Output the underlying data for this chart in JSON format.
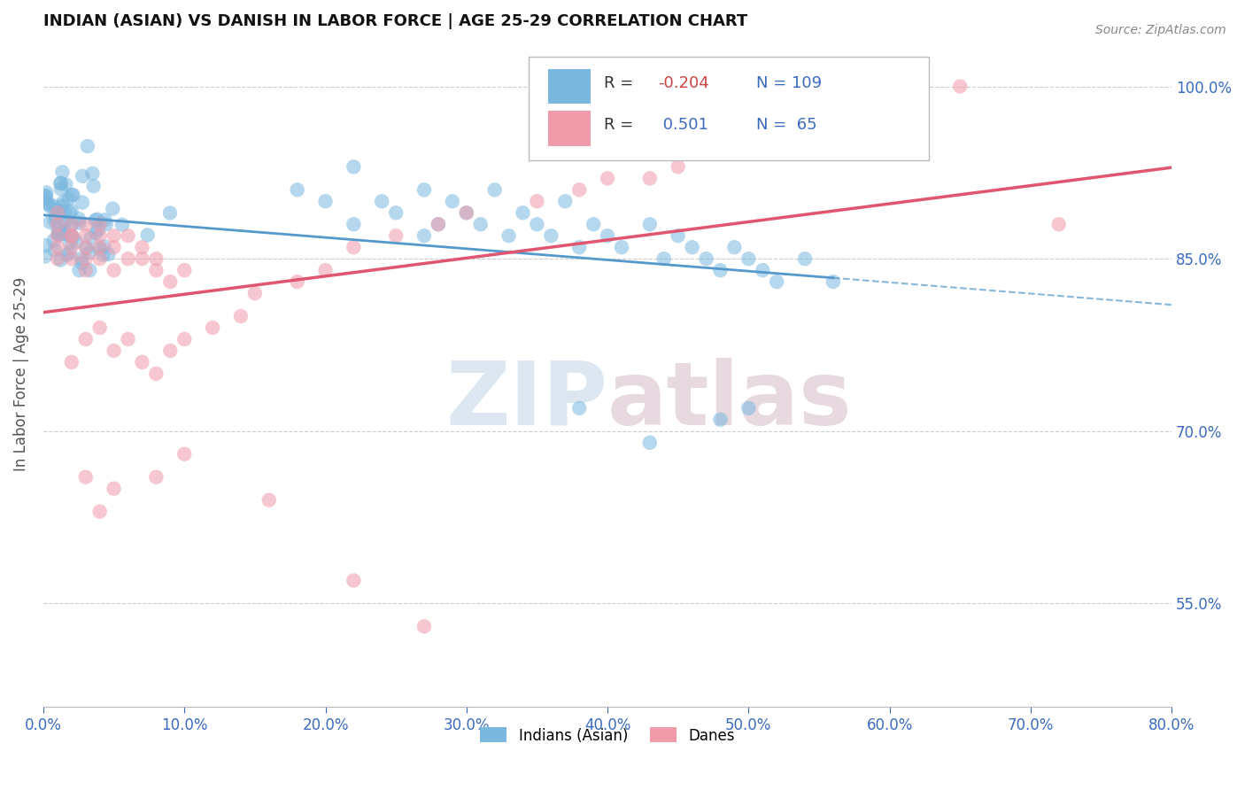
{
  "title": "INDIAN (ASIAN) VS DANISH IN LABOR FORCE | AGE 25-29 CORRELATION CHART",
  "source_text": "Source: ZipAtlas.com",
  "ylabel": "In Labor Force | Age 25-29",
  "xlim": [
    0.0,
    0.8
  ],
  "ylim": [
    0.46,
    1.04
  ],
  "xtick_labels": [
    "0.0%",
    "10.0%",
    "20.0%",
    "30.0%",
    "40.0%",
    "50.0%",
    "60.0%",
    "70.0%",
    "80.0%"
  ],
  "xtick_vals": [
    0.0,
    0.1,
    0.2,
    0.3,
    0.4,
    0.5,
    0.6,
    0.7,
    0.8
  ],
  "ytick_labels": [
    "55.0%",
    "70.0%",
    "85.0%",
    "100.0%"
  ],
  "ytick_vals": [
    0.55,
    0.7,
    0.85,
    1.0
  ],
  "legend_r_indian": "-0.204",
  "legend_n_indian": "109",
  "legend_r_danish": "0.501",
  "legend_n_danish": "65",
  "legend_label_indian": "Indians (Asian)",
  "legend_label_danish": "Danes",
  "color_indian": "#7ab8e0",
  "color_danish": "#f09aaa",
  "color_trendline_indian": "#5599cc",
  "color_trendline_danish": "#e05570",
  "watermark_zip_color": "#c5d8e8",
  "watermark_atlas_color": "#d8c0ca"
}
